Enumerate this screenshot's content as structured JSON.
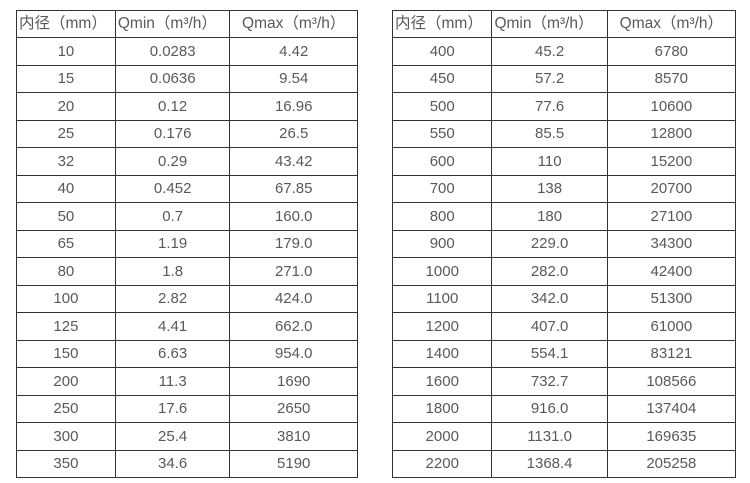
{
  "page": {
    "background": "#ffffff"
  },
  "colors": {
    "border": "#333333",
    "text": "#595959"
  },
  "tables": [
    {
      "name": "flow-spec-table-small-diameters",
      "columns": [
        "内径（mm）",
        "Qmin（m³/h）",
        "Qmax（m³/h）"
      ],
      "rows": [
        [
          "10",
          "0.0283",
          "4.42"
        ],
        [
          "15",
          "0.0636",
          "9.54"
        ],
        [
          "20",
          "0.12",
          "16.96"
        ],
        [
          "25",
          "0.176",
          "26.5"
        ],
        [
          "32",
          "0.29",
          "43.42"
        ],
        [
          "40",
          "0.452",
          "67.85"
        ],
        [
          "50",
          "0.7",
          "160.0"
        ],
        [
          "65",
          "1.19",
          "179.0"
        ],
        [
          "80",
          "1.8",
          "271.0"
        ],
        [
          "100",
          "2.82",
          "424.0"
        ],
        [
          "125",
          "4.41",
          "662.0"
        ],
        [
          "150",
          "6.63",
          "954.0"
        ],
        [
          "200",
          "11.3",
          "1690"
        ],
        [
          "250",
          "17.6",
          "2650"
        ],
        [
          "300",
          "25.4",
          "3810"
        ],
        [
          "350",
          "34.6",
          "5190"
        ]
      ]
    },
    {
      "name": "flow-spec-table-large-diameters",
      "columns": [
        "内径（mm）",
        "Qmin（m³/h）",
        "Qmax（m³/h）"
      ],
      "rows": [
        [
          "400",
          "45.2",
          "6780"
        ],
        [
          "450",
          "57.2",
          "8570"
        ],
        [
          "500",
          "77.6",
          "10600"
        ],
        [
          "550",
          "85.5",
          "12800"
        ],
        [
          "600",
          "110",
          "15200"
        ],
        [
          "700",
          "138",
          "20700"
        ],
        [
          "800",
          "180",
          "27100"
        ],
        [
          "900",
          "229.0",
          "34300"
        ],
        [
          "1000",
          "282.0",
          "42400"
        ],
        [
          "1100",
          "342.0",
          "51300"
        ],
        [
          "1200",
          "407.0",
          "61000"
        ],
        [
          "1400",
          "554.1",
          "83121"
        ],
        [
          "1600",
          "732.7",
          "108566"
        ],
        [
          "1800",
          "916.0",
          "137404"
        ],
        [
          "2000",
          "1131.0",
          "169635"
        ],
        [
          "2200",
          "1368.4",
          "205258"
        ]
      ]
    }
  ]
}
